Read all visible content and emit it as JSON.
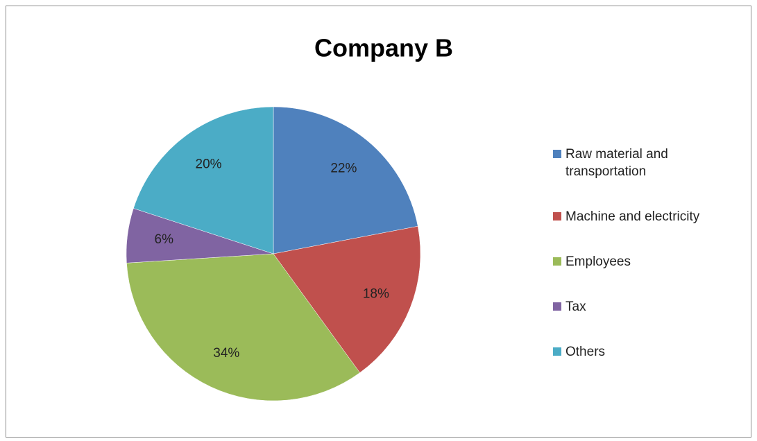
{
  "chart_data": {
    "type": "pie",
    "title": "Company B",
    "categories": [
      "Raw material and transportation",
      "Machine and electricity",
      "Employees",
      "Tax",
      "Others"
    ],
    "values": [
      22,
      18,
      34,
      6,
      20
    ],
    "value_labels": [
      "22%",
      "18%",
      "34%",
      "6%",
      "20%"
    ],
    "colors": [
      "#4f81bd",
      "#c0504d",
      "#9bbb59",
      "#8064a2",
      "#4bacc6"
    ],
    "legend": "right"
  }
}
